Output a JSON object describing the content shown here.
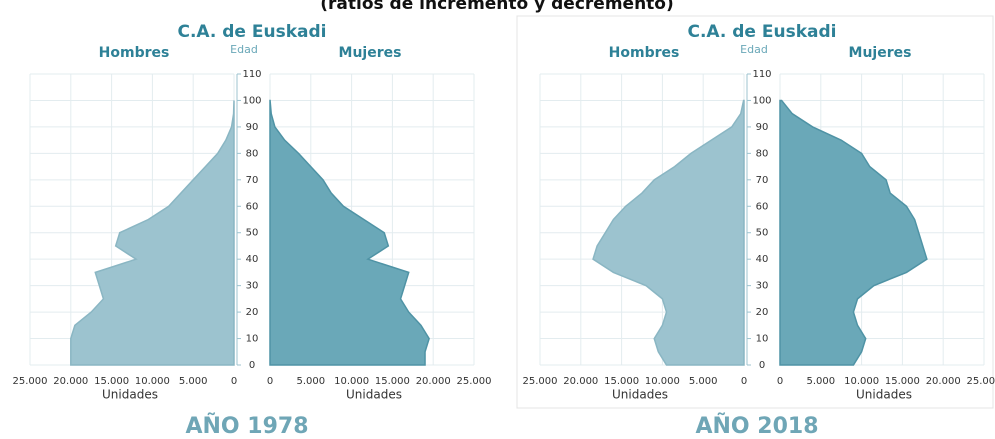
{
  "header": "(ratios de incremento y decremento)",
  "chart_data": [
    {
      "type": "pyramid",
      "title": "C.A. de Euskadi",
      "age_label": "Edad",
      "x_label": "Unidades",
      "caption": "AÑO 1978",
      "ages": [
        0,
        5,
        10,
        15,
        20,
        25,
        30,
        35,
        40,
        45,
        50,
        55,
        60,
        65,
        70,
        75,
        80,
        85,
        90,
        95,
        100
      ],
      "series": [
        {
          "name": "Hombres",
          "color": "#9cc3cf",
          "values": [
            20000,
            20000,
            20000,
            19500,
            17500,
            16000,
            16500,
            17000,
            12000,
            14500,
            14000,
            10500,
            8000,
            6500,
            5000,
            3500,
            2000,
            1000,
            300,
            50,
            0
          ]
        },
        {
          "name": "Mujeres",
          "color": "#6aa8b8",
          "values": [
            19000,
            19000,
            19500,
            18500,
            17000,
            16000,
            16500,
            17000,
            12000,
            14500,
            14000,
            11500,
            9000,
            7500,
            6500,
            5000,
            3500,
            1800,
            600,
            150,
            10
          ]
        }
      ],
      "ylim": [
        0,
        110
      ],
      "yticks": [
        0,
        10,
        20,
        30,
        40,
        50,
        60,
        70,
        80,
        90,
        100,
        110
      ],
      "xlim": [
        0,
        25000
      ],
      "xticks": [
        0,
        {
          "value": 5000,
          "label": "5.000"
        },
        {
          "value": 10000,
          "label": "10.000"
        },
        {
          "value": 15000,
          "label": "15.000"
        },
        {
          "value": 20000,
          "label": "20.000"
        },
        {
          "value": 25000,
          "label": "25.000"
        }
      ],
      "grid": true
    },
    {
      "type": "pyramid",
      "title": "C.A. de Euskadi",
      "age_label": "Edad",
      "x_label": "Unidades",
      "caption": "AÑO 2018",
      "ages": [
        0,
        5,
        10,
        15,
        20,
        25,
        30,
        35,
        40,
        45,
        50,
        55,
        60,
        65,
        70,
        75,
        80,
        85,
        90,
        95,
        100
      ],
      "series": [
        {
          "name": "Hombres",
          "color": "#9cc3cf",
          "values": [
            9500,
            10500,
            11000,
            10000,
            9500,
            10000,
            12000,
            16000,
            18500,
            18000,
            17000,
            16000,
            14500,
            12500,
            11000,
            8500,
            6500,
            4000,
            1500,
            400,
            50
          ]
        },
        {
          "name": "Mujeres",
          "color": "#6aa8b8",
          "values": [
            9000,
            10000,
            10500,
            9500,
            9000,
            9500,
            11500,
            15500,
            18000,
            17500,
            17000,
            16500,
            15500,
            13500,
            13000,
            11000,
            10000,
            7500,
            4000,
            1500,
            200
          ]
        }
      ],
      "ylim": [
        0,
        110
      ],
      "yticks": [
        0,
        10,
        20,
        30,
        40,
        50,
        60,
        70,
        80,
        90,
        100,
        110
      ],
      "xlim": [
        0,
        25000
      ],
      "xticks": [
        0,
        {
          "value": 5000,
          "label": "5.000"
        },
        {
          "value": 10000,
          "label": "10.000"
        },
        {
          "value": 15000,
          "label": "15.000"
        },
        {
          "value": 20000,
          "label": "20.000"
        },
        {
          "value": 25000,
          "label": "25.000"
        }
      ],
      "grid": true
    }
  ]
}
